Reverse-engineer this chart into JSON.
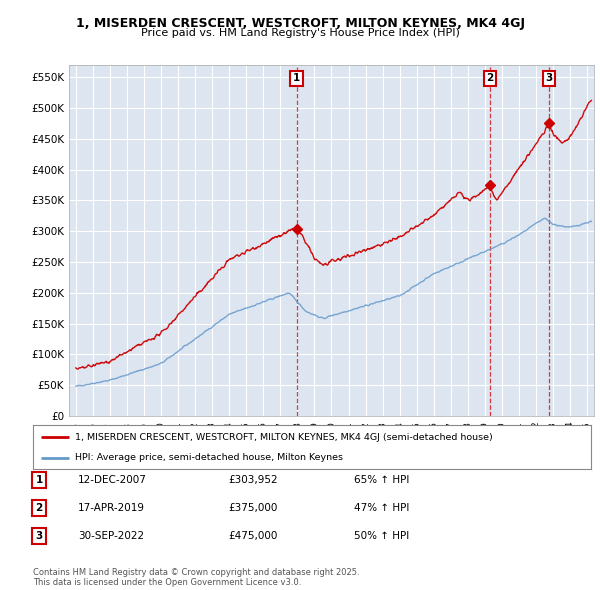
{
  "title_line1": "1, MISERDEN CRESCENT, WESTCROFT, MILTON KEYNES, MK4 4GJ",
  "title_line2": "Price paid vs. HM Land Registry's House Price Index (HPI)",
  "bg_color": "#dde6f0",
  "red_line_color": "#cc0000",
  "blue_line_color": "#6699cc",
  "ylabel_ticks": [
    "£0",
    "£50K",
    "£100K",
    "£150K",
    "£200K",
    "£250K",
    "£300K",
    "£350K",
    "£400K",
    "£450K",
    "£500K",
    "£550K"
  ],
  "ylabel_values": [
    0,
    50000,
    100000,
    150000,
    200000,
    250000,
    300000,
    350000,
    400000,
    450000,
    500000,
    550000
  ],
  "xmin": 1994.6,
  "xmax": 2025.4,
  "ymin": 0,
  "ymax": 570000,
  "sale_dates_num": [
    2007.95,
    2019.29,
    2022.75
  ],
  "sale_prices": [
    303952,
    375000,
    475000
  ],
  "sale_labels": [
    "1",
    "2",
    "3"
  ],
  "sale_info": [
    [
      "1",
      "12-DEC-2007",
      "£303,952",
      "65% ↑ HPI"
    ],
    [
      "2",
      "17-APR-2019",
      "£375,000",
      "47% ↑ HPI"
    ],
    [
      "3",
      "30-SEP-2022",
      "£475,000",
      "50% ↑ HPI"
    ]
  ],
  "legend_line1": "1, MISERDEN CRESCENT, WESTCROFT, MILTON KEYNES, MK4 4GJ (semi-detached house)",
  "legend_line2": "HPI: Average price, semi-detached house, Milton Keynes",
  "footnote": "Contains HM Land Registry data © Crown copyright and database right 2025.\nThis data is licensed under the Open Government Licence v3.0."
}
